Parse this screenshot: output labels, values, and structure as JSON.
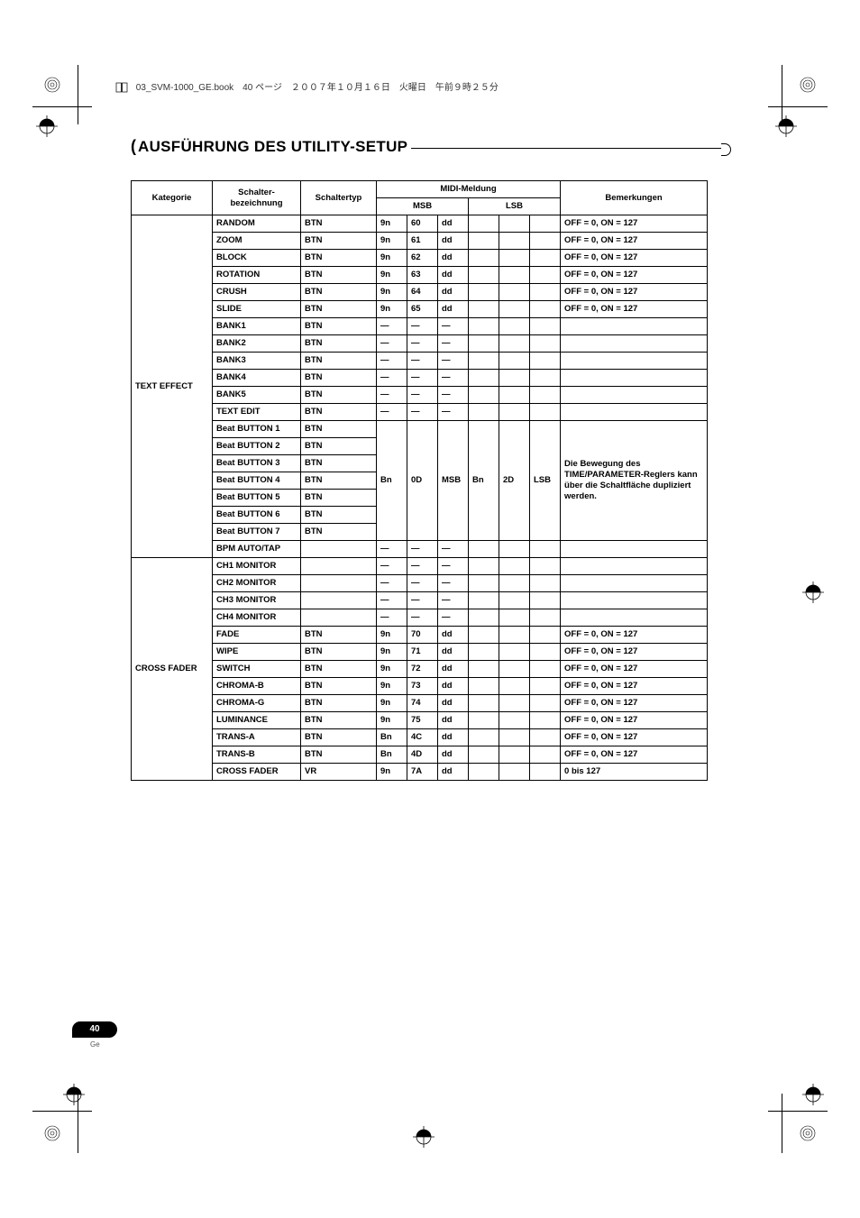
{
  "book_header": "03_SVM-1000_GE.book　40 ページ　２００７年１０月１６日　火曜日　午前９時２５分",
  "section_title": "AUSFÜHRUNG DES UTILITY-SETUP",
  "page_number": "40",
  "page_lang": "Ge",
  "headers": {
    "category": "Kategorie",
    "switch_name": "Schalter-\nbezeichnung",
    "switch_type": "Schaltertyp",
    "midi": "MIDI-Meldung",
    "msb": "MSB",
    "lsb": "LSB",
    "remarks": "Bemerkungen"
  },
  "groups": [
    {
      "category": "TEXT EFFECT",
      "rows": [
        {
          "name": "RANDOM",
          "type": "BTN",
          "msb": [
            "9n",
            "60",
            "dd"
          ],
          "lsb": [
            "",
            "",
            ""
          ],
          "rem": "OFF = 0, ON = 127"
        },
        {
          "name": "ZOOM",
          "type": "BTN",
          "msb": [
            "9n",
            "61",
            "dd"
          ],
          "lsb": [
            "",
            "",
            ""
          ],
          "rem": "OFF = 0, ON = 127"
        },
        {
          "name": "BLOCK",
          "type": "BTN",
          "msb": [
            "9n",
            "62",
            "dd"
          ],
          "lsb": [
            "",
            "",
            ""
          ],
          "rem": "OFF = 0, ON = 127"
        },
        {
          "name": "ROTATION",
          "type": "BTN",
          "msb": [
            "9n",
            "63",
            "dd"
          ],
          "lsb": [
            "",
            "",
            ""
          ],
          "rem": "OFF = 0, ON = 127"
        },
        {
          "name": "CRUSH",
          "type": "BTN",
          "msb": [
            "9n",
            "64",
            "dd"
          ],
          "lsb": [
            "",
            "",
            ""
          ],
          "rem": "OFF = 0, ON = 127"
        },
        {
          "name": "SLIDE",
          "type": "BTN",
          "msb": [
            "9n",
            "65",
            "dd"
          ],
          "lsb": [
            "",
            "",
            ""
          ],
          "rem": "OFF = 0, ON = 127"
        },
        {
          "name": "BANK1",
          "type": "BTN",
          "msb": [
            "—",
            "—",
            "—"
          ],
          "lsb": [
            "",
            "",
            ""
          ],
          "rem": ""
        },
        {
          "name": "BANK2",
          "type": "BTN",
          "msb": [
            "—",
            "—",
            "—"
          ],
          "lsb": [
            "",
            "",
            ""
          ],
          "rem": ""
        },
        {
          "name": "BANK3",
          "type": "BTN",
          "msb": [
            "—",
            "—",
            "—"
          ],
          "lsb": [
            "",
            "",
            ""
          ],
          "rem": ""
        },
        {
          "name": "BANK4",
          "type": "BTN",
          "msb": [
            "—",
            "—",
            "—"
          ],
          "lsb": [
            "",
            "",
            ""
          ],
          "rem": ""
        },
        {
          "name": "BANK5",
          "type": "BTN",
          "msb": [
            "—",
            "—",
            "—"
          ],
          "lsb": [
            "",
            "",
            ""
          ],
          "rem": ""
        },
        {
          "name": "TEXT EDIT",
          "type": "BTN",
          "msb": [
            "—",
            "—",
            "—"
          ],
          "lsb": [
            "",
            "",
            ""
          ],
          "rem": ""
        }
      ],
      "beat_rows": [
        {
          "name": "Beat BUTTON 1",
          "type": "BTN"
        },
        {
          "name": "Beat BUTTON 2",
          "type": "BTN"
        },
        {
          "name": "Beat BUTTON 3",
          "type": "BTN"
        },
        {
          "name": "Beat BUTTON 4",
          "type": "BTN"
        },
        {
          "name": "Beat BUTTON 5",
          "type": "BTN"
        },
        {
          "name": "Beat BUTTON 6",
          "type": "BTN"
        },
        {
          "name": "Beat BUTTON 7",
          "type": "BTN"
        }
      ],
      "beat_msb": [
        "Bn",
        "0D",
        "MSB"
      ],
      "beat_lsb": [
        "Bn",
        "2D",
        "LSB"
      ],
      "beat_rem": "Die Bewegung des TIME/PARAMETER-Reglers kann über die Schaltfläche dupliziert werden.",
      "tail_rows": [
        {
          "name": "BPM AUTO/TAP",
          "type": "",
          "msb": [
            "—",
            "—",
            "—"
          ],
          "lsb": [
            "",
            "",
            ""
          ],
          "rem": ""
        }
      ]
    },
    {
      "category": "CROSS FADER",
      "rows": [
        {
          "name": "CH1 MONITOR",
          "type": "",
          "msb": [
            "—",
            "—",
            "—"
          ],
          "lsb": [
            "",
            "",
            ""
          ],
          "rem": ""
        },
        {
          "name": "CH2 MONITOR",
          "type": "",
          "msb": [
            "—",
            "—",
            "—"
          ],
          "lsb": [
            "",
            "",
            ""
          ],
          "rem": ""
        },
        {
          "name": "CH3 MONITOR",
          "type": "",
          "msb": [
            "—",
            "—",
            "—"
          ],
          "lsb": [
            "",
            "",
            ""
          ],
          "rem": ""
        },
        {
          "name": "CH4 MONITOR",
          "type": "",
          "msb": [
            "—",
            "—",
            "—"
          ],
          "lsb": [
            "",
            "",
            ""
          ],
          "rem": ""
        },
        {
          "name": "FADE",
          "type": "BTN",
          "msb": [
            "9n",
            "70",
            "dd"
          ],
          "lsb": [
            "",
            "",
            ""
          ],
          "rem": "OFF = 0, ON = 127"
        },
        {
          "name": "WIPE",
          "type": "BTN",
          "msb": [
            "9n",
            "71",
            "dd"
          ],
          "lsb": [
            "",
            "",
            ""
          ],
          "rem": "OFF = 0, ON = 127"
        },
        {
          "name": "SWITCH",
          "type": "BTN",
          "msb": [
            "9n",
            "72",
            "dd"
          ],
          "lsb": [
            "",
            "",
            ""
          ],
          "rem": "OFF = 0, ON = 127"
        },
        {
          "name": "CHROMA-B",
          "type": "BTN",
          "msb": [
            "9n",
            "73",
            "dd"
          ],
          "lsb": [
            "",
            "",
            ""
          ],
          "rem": "OFF = 0, ON = 127"
        },
        {
          "name": "CHROMA-G",
          "type": "BTN",
          "msb": [
            "9n",
            "74",
            "dd"
          ],
          "lsb": [
            "",
            "",
            ""
          ],
          "rem": "OFF = 0, ON = 127"
        },
        {
          "name": "LUMINANCE",
          "type": "BTN",
          "msb": [
            "9n",
            "75",
            "dd"
          ],
          "lsb": [
            "",
            "",
            ""
          ],
          "rem": "OFF = 0, ON = 127"
        },
        {
          "name": "TRANS-A",
          "type": "BTN",
          "msb": [
            "Bn",
            "4C",
            "dd"
          ],
          "lsb": [
            "",
            "",
            ""
          ],
          "rem": "OFF = 0, ON = 127"
        },
        {
          "name": "TRANS-B",
          "type": "BTN",
          "msb": [
            "Bn",
            "4D",
            "dd"
          ],
          "lsb": [
            "",
            "",
            ""
          ],
          "rem": "OFF = 0, ON = 127"
        },
        {
          "name": "CROSS FADER",
          "type": "VR",
          "msb": [
            "9n",
            "7A",
            "dd"
          ],
          "lsb": [
            "",
            "",
            ""
          ],
          "rem": "0 bis 127"
        }
      ]
    }
  ]
}
